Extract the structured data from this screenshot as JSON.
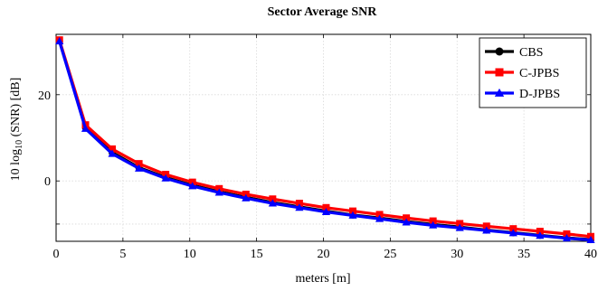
{
  "chart_data": {
    "type": "line",
    "title": "Sector Average SNR",
    "xlabel": "meters [m]",
    "ylabel": {
      "prefix": "10 log",
      "subscript": "10",
      "suffix": " (SNR) [dB]"
    },
    "xlim": [
      0,
      40
    ],
    "ylim": [
      -14,
      34
    ],
    "xticks": [
      0,
      5,
      10,
      15,
      20,
      25,
      30,
      35,
      40
    ],
    "yticks": [
      -10,
      0,
      20
    ],
    "ytick_labels_shown": [
      "0",
      "20"
    ],
    "grid": true,
    "legend_position": "top-right",
    "x": [
      0.25,
      2.2,
      4.2,
      6.2,
      8.2,
      10.2,
      12.2,
      14.2,
      16.2,
      18.2,
      20.2,
      22.2,
      24.2,
      26.2,
      28.2,
      30.2,
      32.2,
      34.2,
      36.2,
      38.2,
      40
    ],
    "series": [
      {
        "name": "CBS",
        "color": "#000000",
        "marker": "circle",
        "values": [
          32.5,
          12.4,
          6.6,
          3.1,
          0.8,
          -1.0,
          -2.5,
          -3.8,
          -5.0,
          -6.0,
          -7.0,
          -7.9,
          -8.6,
          -9.4,
          -10.1,
          -10.7,
          -11.4,
          -12.0,
          -12.6,
          -13.2,
          -13.6
        ]
      },
      {
        "name": "C-JPBS",
        "color": "#ff0000",
        "marker": "square",
        "values": [
          32.7,
          13.0,
          7.4,
          4.0,
          1.5,
          -0.3,
          -1.8,
          -3.1,
          -4.2,
          -5.2,
          -6.2,
          -7.0,
          -7.8,
          -8.6,
          -9.3,
          -9.9,
          -10.5,
          -11.1,
          -11.7,
          -12.3,
          -12.9
        ]
      },
      {
        "name": "D-JPBS",
        "color": "#0000ff",
        "marker": "triangle",
        "values": [
          32.4,
          12.1,
          6.3,
          2.9,
          0.6,
          -1.2,
          -2.7,
          -4.0,
          -5.2,
          -6.2,
          -7.2,
          -8.0,
          -8.8,
          -9.6,
          -10.3,
          -10.9,
          -11.5,
          -12.1,
          -12.7,
          -13.3,
          -13.7
        ]
      }
    ]
  }
}
